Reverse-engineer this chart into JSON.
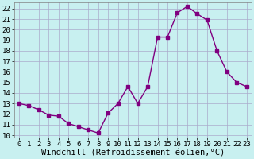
{
  "x": [
    0,
    1,
    2,
    3,
    4,
    5,
    6,
    7,
    8,
    9,
    10,
    11,
    12,
    13,
    14,
    15,
    16,
    17,
    18,
    19,
    20,
    21,
    22,
    23
  ],
  "y": [
    13.0,
    12.8,
    12.4,
    11.9,
    11.8,
    11.1,
    10.8,
    10.5,
    10.2,
    12.1,
    13.0,
    14.6,
    13.0,
    14.6,
    19.3,
    19.3,
    21.6,
    22.2,
    21.5,
    20.9,
    18.0,
    16.0,
    15.0,
    14.6
  ],
  "line_color": "#800080",
  "marker": "s",
  "marker_size": 2.5,
  "bg_color": "#c8f0f0",
  "grid_color": "#aaaacc",
  "xlabel": "Windchill (Refroidissement éolien,°C)",
  "xlabel_fontsize": 7.5,
  "tick_fontsize": 6.5,
  "ylim": [
    9.8,
    22.6
  ],
  "yticks": [
    10,
    11,
    12,
    13,
    14,
    15,
    16,
    17,
    18,
    19,
    20,
    21,
    22
  ],
  "xticks": [
    0,
    1,
    2,
    3,
    4,
    5,
    6,
    7,
    8,
    9,
    10,
    11,
    12,
    13,
    14,
    15,
    16,
    17,
    18,
    19,
    20,
    21,
    22,
    23
  ],
  "xlim": [
    -0.5,
    23.5
  ]
}
